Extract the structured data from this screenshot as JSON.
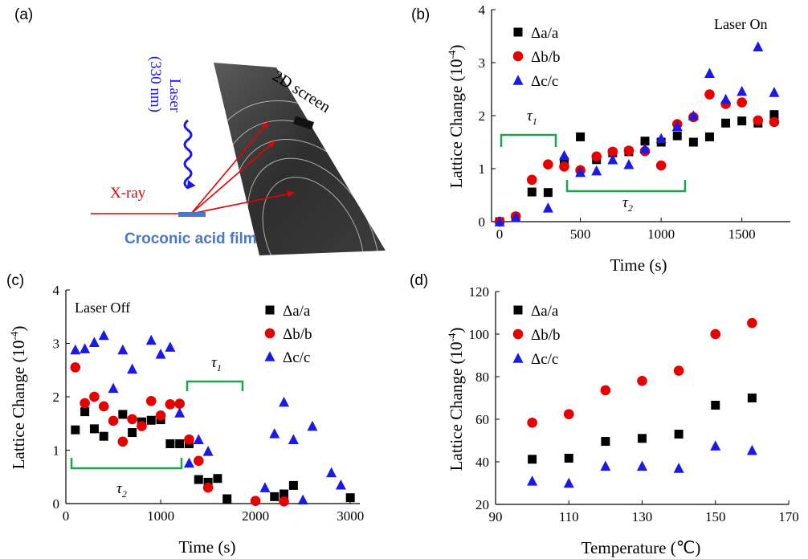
{
  "panels": {
    "a": {
      "label": "(a)",
      "laser_label_line1": "Laser",
      "laser_label_line2": "(330 nm)",
      "xray_label": "X-ray",
      "screen_label": "2D screen",
      "film_label": "Croconic acid film",
      "colors": {
        "laser": "#1a1ae6",
        "xray": "#e60000",
        "film": "#4a78c8"
      }
    },
    "b": {
      "label": "(b)",
      "annotation": "Laser On",
      "tau1": "τ",
      "tau1_sub": "1",
      "tau2": "τ",
      "tau2_sub": "2"
    },
    "c": {
      "label": "(c)",
      "annotation": "Laser Off",
      "tau1": "τ",
      "tau1_sub": "1",
      "tau2": "τ",
      "tau2_sub": "2"
    },
    "d": {
      "label": "(d)"
    }
  },
  "chart_data": [
    {
      "id": "b",
      "type": "scatter",
      "xlabel": "Time (s)",
      "ylabel": "Lattice Change (10",
      "ylabel_sup": "-4",
      "ylabel_end": ")",
      "xlim": [
        -50,
        1800
      ],
      "ylim": [
        0,
        4
      ],
      "xticks": [
        0,
        500,
        1000,
        1500
      ],
      "yticks": [
        0,
        1,
        2,
        3,
        4
      ],
      "legend_position": "top-left",
      "series": [
        {
          "name": "Δa/a",
          "marker": "square",
          "color": "#000000",
          "x": [
            0,
            100,
            200,
            300,
            400,
            500,
            600,
            700,
            800,
            900,
            1000,
            1100,
            1200,
            1300,
            1400,
            1500,
            1600,
            1700
          ],
          "y": [
            0,
            0.08,
            0.56,
            0.55,
            1.13,
            1.6,
            1.17,
            1.3,
            1.32,
            1.52,
            1.5,
            1.62,
            1.5,
            1.6,
            1.86,
            1.9,
            1.86,
            2.02
          ]
        },
        {
          "name": "Δb/b",
          "marker": "circle",
          "color": "#e60000",
          "x": [
            0,
            100,
            200,
            300,
            400,
            500,
            600,
            700,
            800,
            900,
            1000,
            1100,
            1200,
            1300,
            1400,
            1500,
            1600,
            1700
          ],
          "y": [
            0,
            0.1,
            0.79,
            1.08,
            1.04,
            0.97,
            1.23,
            1.32,
            1.34,
            1.33,
            1.06,
            1.84,
            1.97,
            2.4,
            2.22,
            2.25,
            1.91,
            1.88
          ]
        },
        {
          "name": "Δc/c",
          "marker": "triangle",
          "color": "#1a1ae6",
          "x": [
            0,
            100,
            300,
            400,
            500,
            600,
            700,
            800,
            900,
            1000,
            1100,
            1200,
            1300,
            1400,
            1500,
            1600,
            1700
          ],
          "y": [
            0,
            0.08,
            0.26,
            1.25,
            0.93,
            0.96,
            1.17,
            1.08,
            1.38,
            1.57,
            1.8,
            2.0,
            2.8,
            2.31,
            2.46,
            3.3,
            2.44
          ]
        }
      ]
    },
    {
      "id": "c",
      "type": "scatter",
      "xlabel": "Time (s)",
      "ylabel": "Lattice Change (10",
      "ylabel_sup": "-4",
      "ylabel_end": ")",
      "xlim": [
        0,
        3100
      ],
      "ylim": [
        0,
        4
      ],
      "xticks": [
        0,
        1000,
        2000,
        3000
      ],
      "yticks": [
        0,
        1,
        2,
        3,
        4
      ],
      "legend_position": "top-right",
      "series": [
        {
          "name": "Δa/a",
          "marker": "square",
          "color": "#000000",
          "x": [
            100,
            200,
            300,
            400,
            600,
            700,
            800,
            900,
            1000,
            1100,
            1200,
            1300,
            1400,
            1500,
            1600,
            1700,
            2200,
            2300,
            2400,
            3000
          ],
          "y": [
            1.38,
            1.72,
            1.4,
            1.26,
            1.67,
            1.33,
            1.53,
            1.56,
            1.57,
            1.12,
            1.12,
            1.12,
            0.45,
            0.4,
            0.47,
            0.09,
            0.13,
            0.18,
            0.34,
            0.11
          ]
        },
        {
          "name": "Δb/b",
          "marker": "circle",
          "color": "#e60000",
          "x": [
            100,
            200,
            300,
            400,
            500,
            600,
            700,
            800,
            900,
            1000,
            1100,
            1200,
            1300,
            1400,
            1500,
            2000,
            2300
          ],
          "y": [
            2.55,
            1.88,
            2.0,
            1.82,
            1.55,
            1.16,
            1.58,
            1.45,
            1.92,
            1.65,
            1.86,
            1.87,
            1.2,
            0.8,
            0.3,
            0.05,
            0.04
          ]
        },
        {
          "name": "Δc/c",
          "marker": "triangle",
          "color": "#1a1ae6",
          "x": [
            100,
            200,
            300,
            400,
            500,
            600,
            700,
            900,
            1000,
            1100,
            1200,
            1300,
            1400,
            1500,
            2100,
            2200,
            2300,
            2400,
            2500,
            2600,
            2800,
            2900
          ],
          "y": [
            2.88,
            2.9,
            3.02,
            3.15,
            2.16,
            2.88,
            2.52,
            3.06,
            2.8,
            2.93,
            1.7,
            0.76,
            1.2,
            0.98,
            0.3,
            1.31,
            1.9,
            1.2,
            0.07,
            1.45,
            0.58,
            0.35
          ]
        }
      ]
    },
    {
      "id": "d",
      "type": "scatter",
      "xlabel": "Temperature (℃)",
      "ylabel": "Lattice Change (10",
      "ylabel_sup": "-4",
      "ylabel_end": ")",
      "xlim": [
        90,
        170
      ],
      "ylim": [
        20,
        120
      ],
      "xticks": [
        90,
        110,
        130,
        150,
        170
      ],
      "yticks": [
        20,
        40,
        60,
        80,
        100,
        120
      ],
      "legend_position": "top-left",
      "series": [
        {
          "name": "Δa/a",
          "marker": "square",
          "color": "#000000",
          "x": [
            100,
            110,
            120,
            130,
            140,
            150,
            160
          ],
          "y": [
            41.2,
            41.7,
            49.6,
            51.0,
            53.0,
            66.6,
            70.0
          ]
        },
        {
          "name": "Δb/b",
          "marker": "circle",
          "color": "#e60000",
          "x": [
            100,
            110,
            120,
            130,
            140,
            150,
            160
          ],
          "y": [
            58.4,
            62.4,
            73.6,
            78.0,
            82.8,
            100.0,
            105.2
          ]
        },
        {
          "name": "Δc/c",
          "marker": "triangle",
          "color": "#1a1ae6",
          "x": [
            100,
            110,
            120,
            130,
            140,
            150,
            160
          ],
          "y": [
            31.0,
            30.0,
            38.0,
            38.0,
            37.0,
            47.5,
            45.4
          ]
        }
      ]
    }
  ]
}
